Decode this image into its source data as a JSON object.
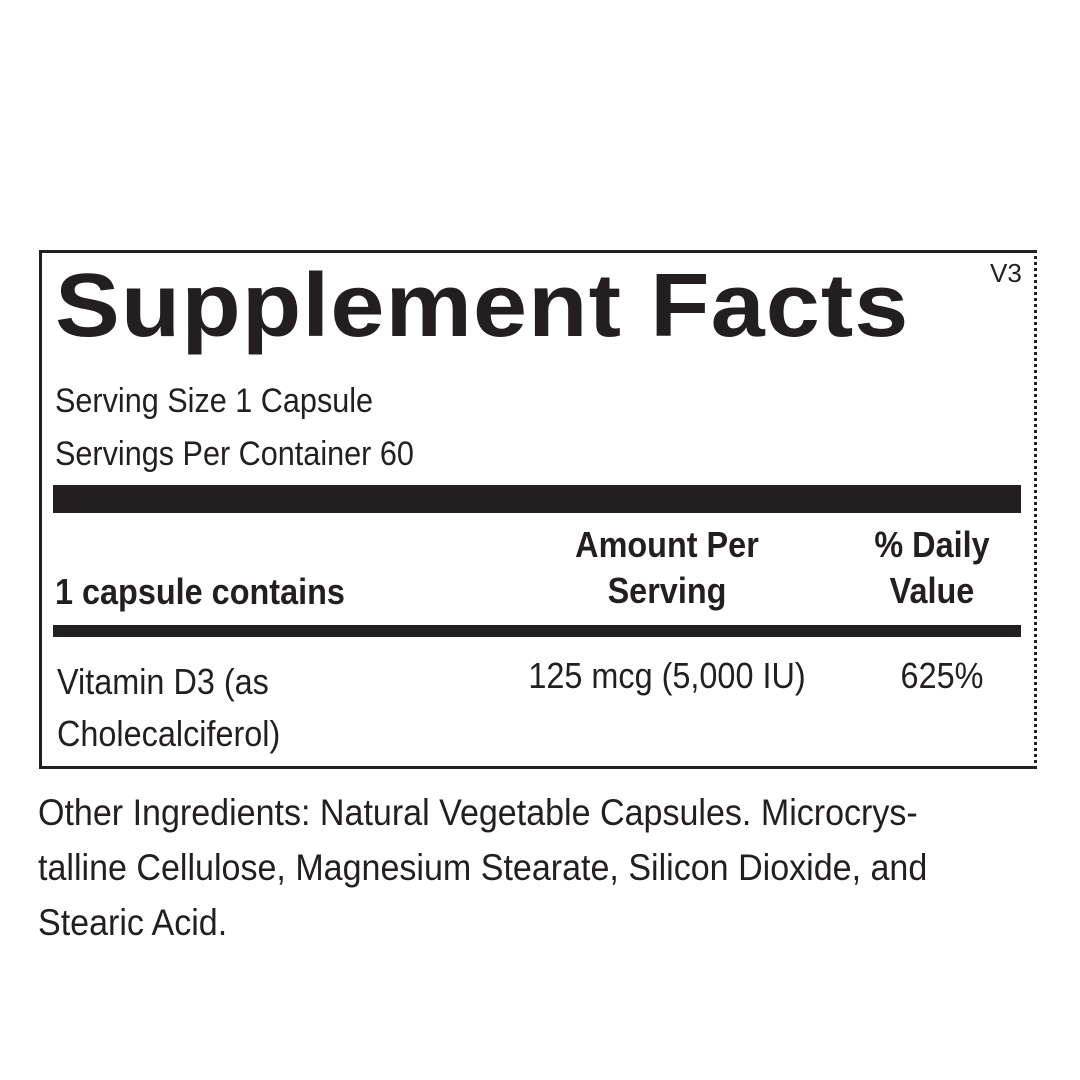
{
  "label": {
    "title": "Supplement Facts",
    "version": "V3",
    "serving_size": "Serving Size 1 Capsule",
    "servings_per_container": "Servings Per Container 60",
    "headers": {
      "contains": "1 capsule contains",
      "amount_line1": "Amount Per",
      "amount_line2": "Serving",
      "dv_line1": "% Daily",
      "dv_line2": "Value"
    },
    "rows": [
      {
        "name_line1": "Vitamin D3 (as",
        "name_line2": "Cholecalciferol)",
        "amount": "125 mcg (5,000 IU)",
        "dv": "625%"
      }
    ]
  },
  "other_ingredients": {
    "line1": "Other Ingredients: Natural Vegetable Capsules. Microcrys-",
    "line2": "talline Cellulose, Magnesium Stearate, Silicon Dioxide, and",
    "line3": "Stearic Acid."
  }
}
